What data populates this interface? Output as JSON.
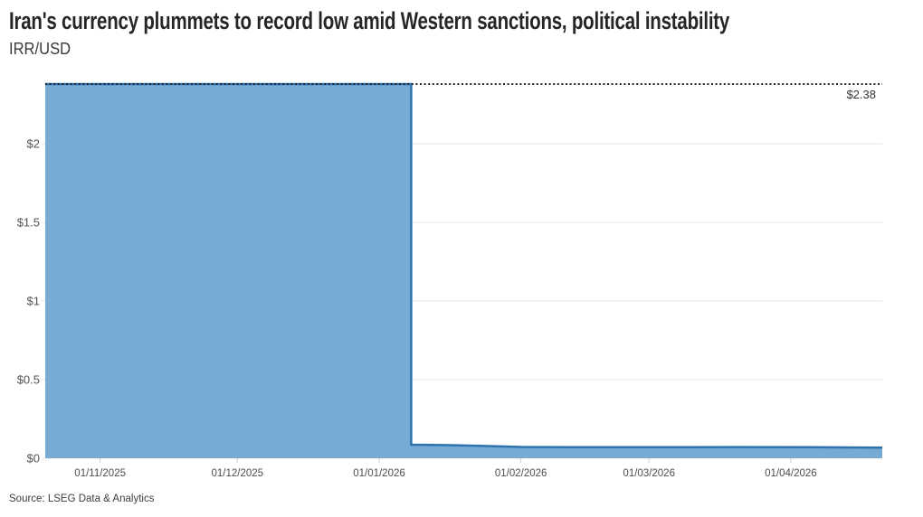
{
  "header": {
    "title": "Iran's currency plummets to record low amid Western sanctions, political instability",
    "subtitle": "IRR/USD"
  },
  "footer": {
    "source": "Source: LSEG Data & Analytics"
  },
  "chart_data": {
    "type": "area",
    "title": "Iran's currency plummets to record low amid Western sanctions, political instability",
    "subtitle": "IRR/USD",
    "xlabel": "",
    "ylabel": "",
    "ylim": [
      0,
      2.38
    ],
    "grid": "horizontal",
    "legend": "none",
    "x_domain": [
      "20/10/2025",
      "21/04/2026"
    ],
    "x_ticks": [
      "01/11/2025",
      "01/12/2025",
      "01/01/2026",
      "01/02/2026",
      "01/03/2026",
      "01/04/2026"
    ],
    "y_ticks": [
      {
        "value": 0,
        "label": "$0"
      },
      {
        "value": 0.5,
        "label": "$0.5"
      },
      {
        "value": 1,
        "label": "$1"
      },
      {
        "value": 1.5,
        "label": "$1.5"
      },
      {
        "value": 2,
        "label": "$2"
      }
    ],
    "annotation": {
      "value": 2.38,
      "label": "$2.38",
      "style": "dotted-line-at-record-level"
    },
    "series": [
      {
        "name": "IRR/USD",
        "points": [
          [
            "20/10/2025",
            2.38
          ],
          [
            "08/01/2026",
            2.38
          ],
          [
            "08/01/2026",
            0.086
          ],
          [
            "15/01/2026",
            0.084
          ],
          [
            "22/01/2026",
            0.08
          ],
          [
            "01/02/2026",
            0.072
          ],
          [
            "12/02/2026",
            0.07
          ],
          [
            "05/03/2026",
            0.07
          ],
          [
            "20/03/2026",
            0.071
          ],
          [
            "05/04/2026",
            0.07
          ],
          [
            "21/04/2026",
            0.068
          ]
        ]
      }
    ],
    "colors": {
      "area_fill": "#77abd4",
      "area_stroke": "#2e73af",
      "annotation_line": "#24242c",
      "gridline": "#e7e7e7",
      "tick": "#cfcfcf",
      "axis_label": "#545454",
      "title": "#262626"
    }
  }
}
